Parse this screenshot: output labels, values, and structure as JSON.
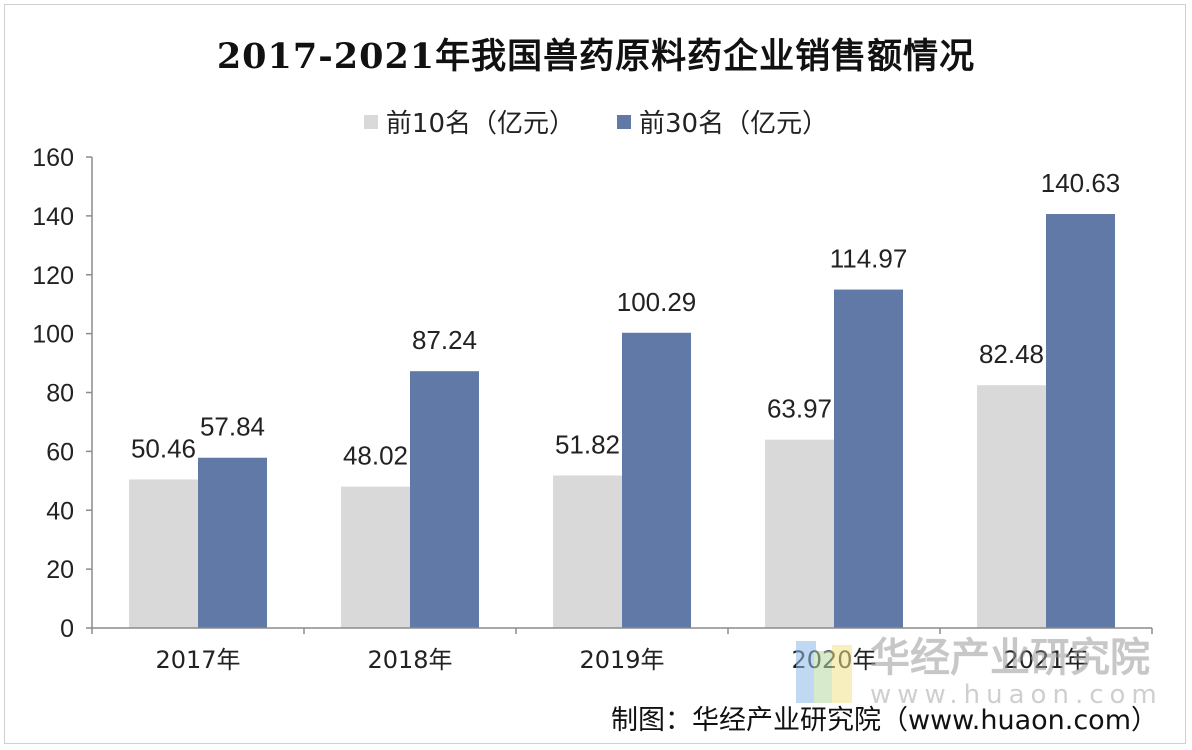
{
  "title": "2017-2021年我国兽药原料药企业销售额情况",
  "legend": [
    {
      "label": "前10名（亿元）",
      "color": "#d9d9d9"
    },
    {
      "label": "前30名（亿元）",
      "color": "#6179a6"
    }
  ],
  "chart_data": {
    "type": "bar",
    "title": "2017-2021年我国兽药原料药企业销售额情况",
    "categories": [
      "2017年",
      "2018年",
      "2019年",
      "2020年",
      "2021年"
    ],
    "series": [
      {
        "name": "前10名（亿元）",
        "values": [
          50.46,
          48.02,
          51.82,
          63.97,
          82.48
        ],
        "color": "#d9d9d9",
        "labels": [
          "50.46",
          "48.02",
          "51.82",
          "63.97",
          "82.48"
        ]
      },
      {
        "name": "前30名（亿元）",
        "values": [
          57.84,
          87.24,
          100.29,
          114.97,
          140.63
        ],
        "color": "#6179a6",
        "labels": [
          "57.84",
          "87.24",
          "100.29",
          "114.97",
          "140.63"
        ]
      }
    ],
    "yticks": [
      "0",
      "20",
      "40",
      "60",
      "80",
      "100",
      "120",
      "140",
      "160"
    ],
    "ylim": [
      0,
      160
    ],
    "xlabel": "",
    "ylabel": "",
    "grid": false,
    "legend_position": "top"
  },
  "watermark": {
    "name": "华经产业研究院",
    "url": "www.huaon.com"
  },
  "source": "制图：华经产业研究院（www.huaon.com）"
}
